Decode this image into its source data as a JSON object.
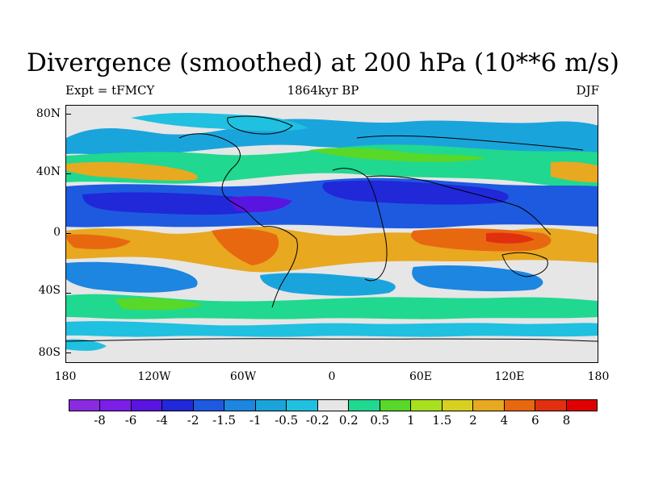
{
  "title": "Divergence (smoothed) at 200 hPa (10**6 m/s)",
  "subtitle_left": "Expt = tFMCY",
  "subtitle_center": "1864kyr BP",
  "subtitle_right": "DJF",
  "lat_labels": [
    "80N",
    "40N",
    "0",
    "40S",
    "80S"
  ],
  "lon_labels": [
    "180",
    "120W",
    "60W",
    "0",
    "60E",
    "120E",
    "180"
  ],
  "colorbar": {
    "colors": [
      "#8a2be2",
      "#7a1ee8",
      "#5a14e0",
      "#2028d8",
      "#1e5ae0",
      "#1c86e0",
      "#1aa4dc",
      "#20c0e0",
      "#e6e6e6",
      "#20d890",
      "#58d828",
      "#a8e020",
      "#d8d020",
      "#e8a820",
      "#e86810",
      "#e03010",
      "#e00000"
    ],
    "labels": [
      "-8",
      "-6",
      "-4",
      "-2",
      "-1.5",
      "-1",
      "-0.5",
      "-0.2",
      "0.2",
      "0.5",
      "1",
      "1.5",
      "2",
      "4",
      "6",
      "8"
    ]
  }
}
